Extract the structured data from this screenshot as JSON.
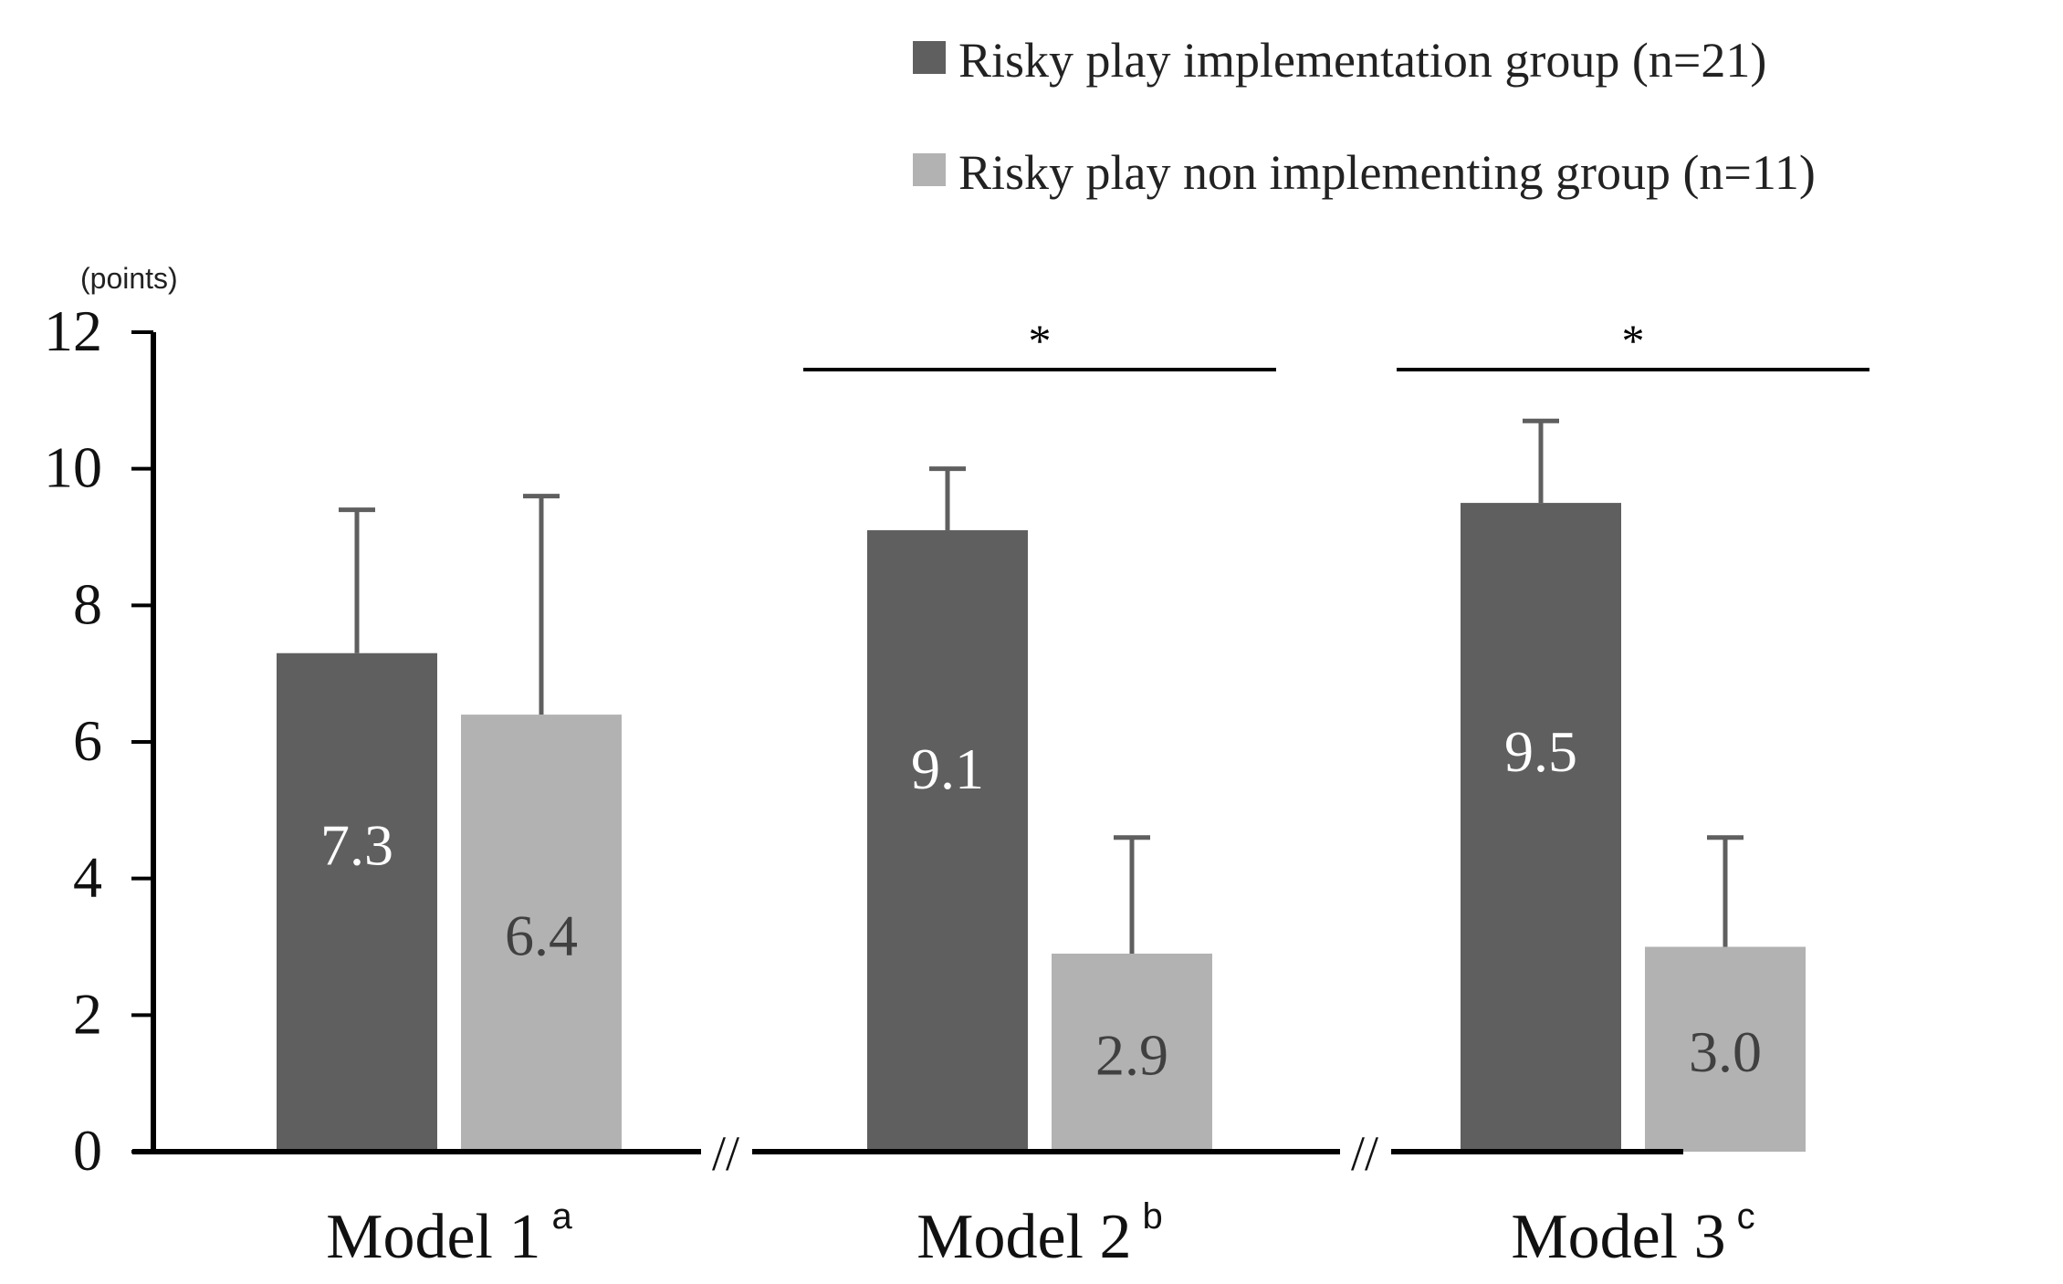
{
  "chart_data": {
    "type": "bar",
    "ylabel": "(points)",
    "ylim": [
      0,
      12
    ],
    "yticks": [
      0,
      2,
      4,
      6,
      8,
      10,
      12
    ],
    "categories": [
      {
        "label": "Model 1",
        "sup": "a"
      },
      {
        "label": "Model 2",
        "sup": "b"
      },
      {
        "label": "Model 3",
        "sup": "c"
      }
    ],
    "series": [
      {
        "name": "Risky play implementation group (n=21)",
        "color": "#5f5f5f",
        "label_color": "#ffffff",
        "values": [
          7.3,
          9.1,
          9.5
        ],
        "labels": [
          "7.3",
          "9.1",
          "9.5"
        ],
        "error_upper": [
          9.4,
          10.0,
          10.7
        ]
      },
      {
        "name": "Risky play non implementing group (n=11)",
        "color": "#b2b2b2",
        "label_color": "#404040",
        "values": [
          6.4,
          2.9,
          3.0
        ],
        "labels": [
          "6.4",
          "2.9",
          "3.0"
        ],
        "error_upper": [
          9.6,
          4.6,
          4.6
        ]
      }
    ],
    "significance": [
      "",
      "*",
      "*"
    ],
    "axis_break_symbol": "//",
    "legend_position": "top-right",
    "grid": false
  }
}
